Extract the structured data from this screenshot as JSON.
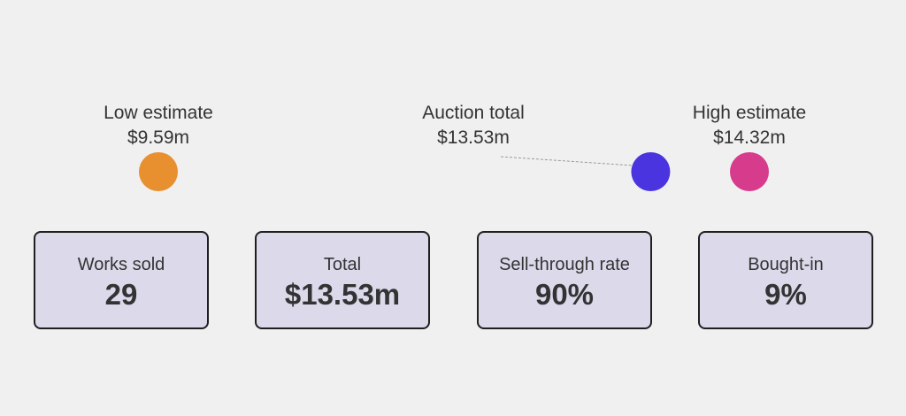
{
  "chart_data": {
    "type": "range",
    "range": {
      "min": 9.59,
      "max": 14.32
    },
    "markers": [
      {
        "key": "low",
        "label": "Low estimate",
        "value": 9.59,
        "value_text": "$9.59m",
        "color": "#e8902f"
      },
      {
        "key": "total",
        "label": "Auction total",
        "value": 13.53,
        "value_text": "$13.53m",
        "color": "#4a34e0"
      },
      {
        "key": "high",
        "label": "High estimate",
        "value": 14.32,
        "value_text": "$14.32m",
        "color": "#d63b8c"
      }
    ],
    "stats": [
      {
        "label": "Works sold",
        "value": "29"
      },
      {
        "label": "Total",
        "value": "$13.53m"
      },
      {
        "label": "Sell-through rate",
        "value": "90%"
      },
      {
        "label": "Bought-in",
        "value": "9%"
      }
    ]
  }
}
